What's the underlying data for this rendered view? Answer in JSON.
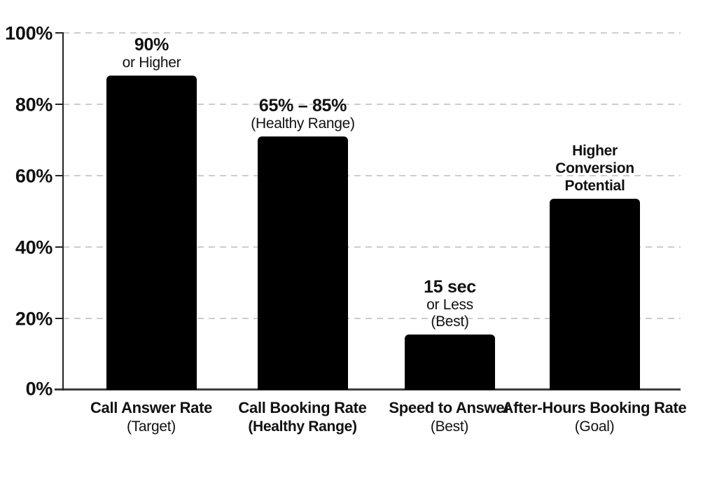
{
  "chart_data": {
    "type": "bar",
    "title": "",
    "xlabel": "",
    "ylabel": "",
    "ylim": [
      0,
      100
    ],
    "grid": "horizontal dashed",
    "legend": "none",
    "background_color": "#ffffff",
    "bar_color": "#000000",
    "grid_color": "#cdcdcd",
    "axis_color": "#222222",
    "ytick_labels": [
      "100%",
      "80%",
      "60%",
      "40%",
      "20%",
      "0%"
    ],
    "categories": [
      "Call Answer Rate (Target)",
      "Call Booking Rate (Healthy Range)",
      "Speed to Answer (Best)",
      "After-Hours Booking Rate (Goal)"
    ],
    "values": [
      88,
      71,
      15.5,
      53.5
    ],
    "bars": [
      {
        "value": 88,
        "annotation_line1": "90%",
        "annotation_line2": "or Higher",
        "label_line1": "Call Answer Rate",
        "label_line2": "(Target)"
      },
      {
        "value": 71,
        "annotation_line1": "65% – 85%",
        "annotation_line2": "(Healthy Range)",
        "label_line1": "Call Booking Rate",
        "label_line2": "(Healthy Range)"
      },
      {
        "value": 15.5,
        "annotation_line1": "15 sec",
        "annotation_line2": "or Less",
        "annotation_line3": "(Best)",
        "label_line1": "Speed to Answer",
        "label_line2": "(Best)"
      },
      {
        "value": 53.5,
        "annotation_line1": "Higher",
        "annotation_line2": "Conversion",
        "annotation_line3": "Potential",
        "label_line1": "After-Hours Booking Rate",
        "label_line2": "(Goal)"
      }
    ]
  }
}
